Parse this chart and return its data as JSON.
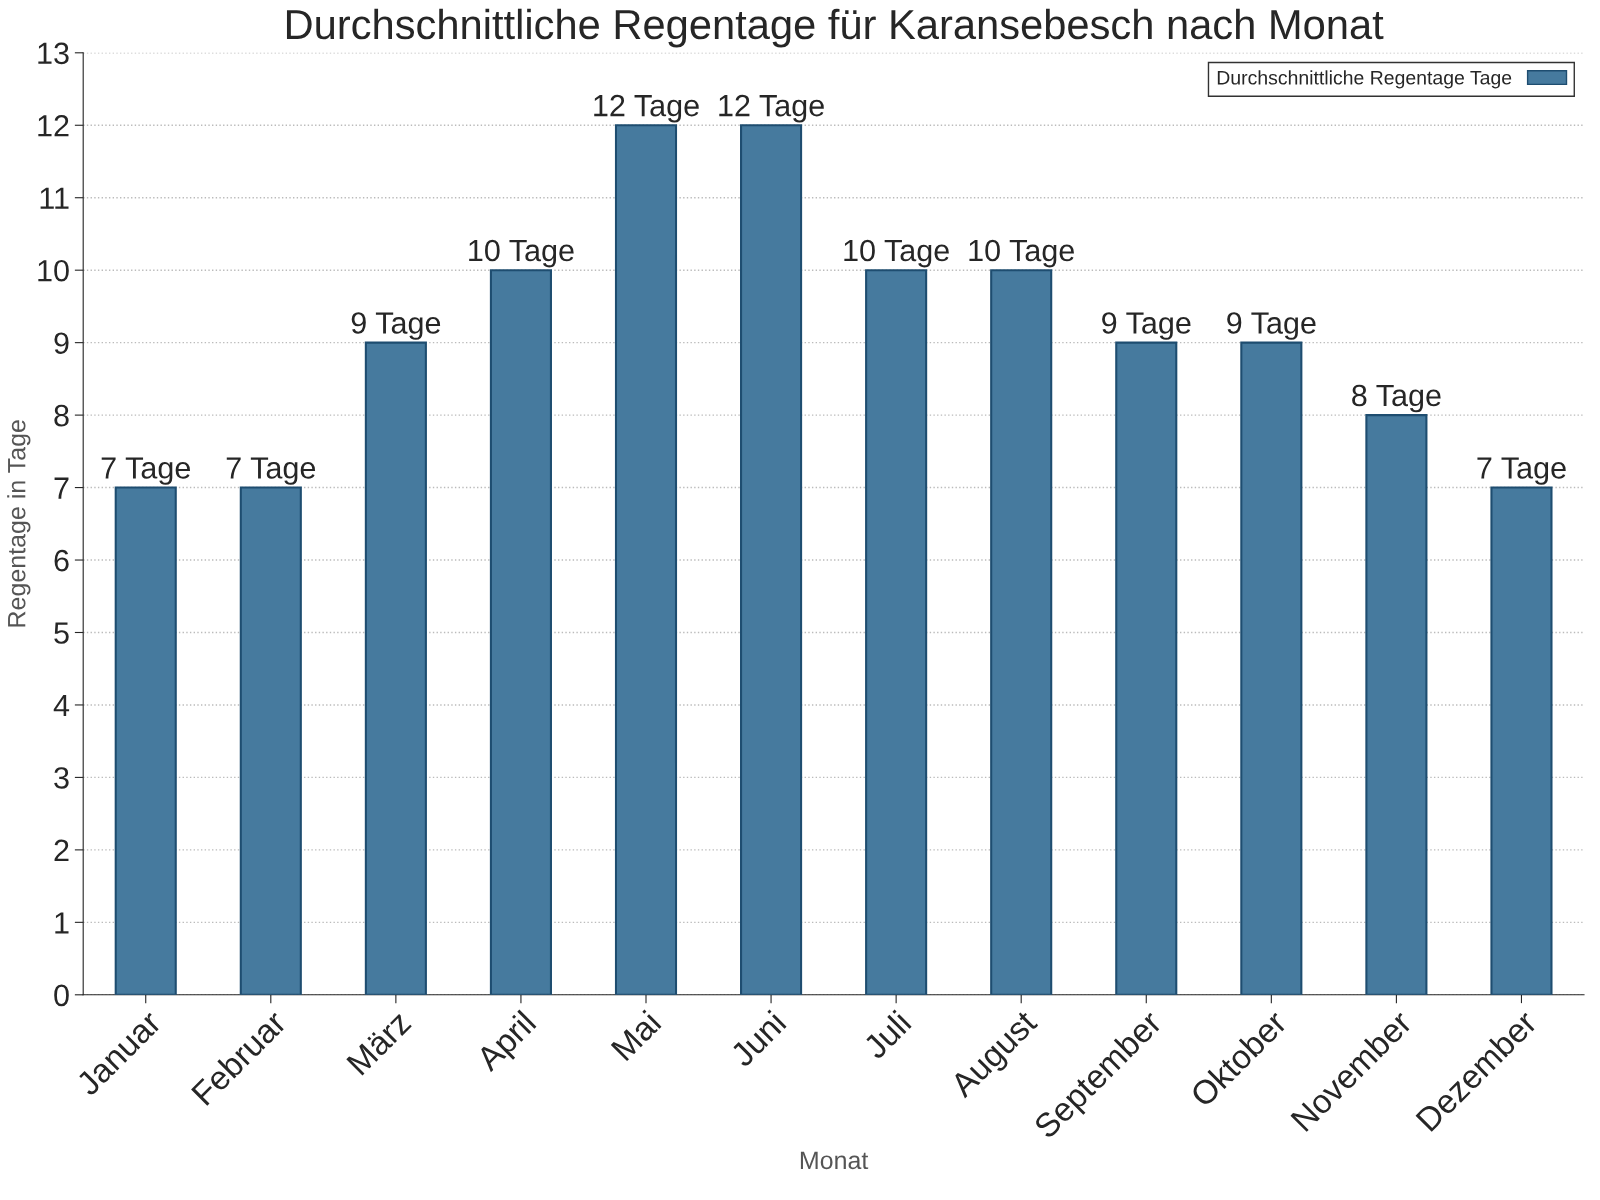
{
  "chart_data": {
    "type": "bar",
    "title": "Durchschnittliche Regentage für Karansebesch nach Monat",
    "xlabel": "Monat",
    "ylabel": "Regentage in Tage",
    "categories": [
      "Januar",
      "Februar",
      "März",
      "April",
      "Mai",
      "Juni",
      "Juli",
      "August",
      "September",
      "Oktober",
      "November",
      "Dezember"
    ],
    "series": [
      {
        "name": "Durchschnittliche Regentage Tage",
        "color": "#467a9e",
        "values": [
          7,
          7,
          9,
          10,
          12,
          12,
          10,
          10,
          9,
          9,
          8,
          7
        ],
        "value_labels": [
          "7 Tage",
          "7 Tage",
          "9 Tage",
          "10 Tage",
          "12 Tage",
          "12 Tage",
          "10 Tage",
          "10 Tage",
          "9 Tage",
          "9 Tage",
          "8 Tage",
          "7 Tage"
        ]
      }
    ],
    "ylim": [
      0,
      13
    ],
    "yticks": [
      0,
      1,
      2,
      3,
      4,
      5,
      6,
      7,
      8,
      9,
      10,
      11,
      12,
      13
    ],
    "grid": "y",
    "legend": "top right"
  }
}
